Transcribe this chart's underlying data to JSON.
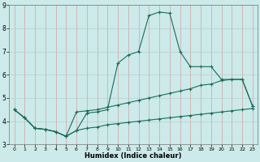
{
  "xlabel": "Humidex (Indice chaleur)",
  "background_color": "#cceaea",
  "line_color": "#1a6b5a",
  "xlim": [
    -0.5,
    23.5
  ],
  "ylim": [
    3,
    9
  ],
  "yticks": [
    3,
    4,
    5,
    6,
    7,
    8,
    9
  ],
  "xticks": [
    0,
    1,
    2,
    3,
    4,
    5,
    6,
    7,
    8,
    9,
    10,
    11,
    12,
    13,
    14,
    15,
    16,
    17,
    18,
    19,
    20,
    21,
    22,
    23
  ],
  "line1_x": [
    0,
    1,
    2,
    3,
    4,
    5,
    6,
    7,
    8,
    9,
    10,
    11,
    12,
    13,
    14,
    15,
    16,
    17,
    18,
    19,
    20,
    21,
    22,
    23
  ],
  "line1_y": [
    4.5,
    4.15,
    3.7,
    3.65,
    3.55,
    3.35,
    3.6,
    3.7,
    3.75,
    3.85,
    3.9,
    3.95,
    4.0,
    4.05,
    4.1,
    4.15,
    4.2,
    4.25,
    4.3,
    4.35,
    4.4,
    4.45,
    4.5,
    4.55
  ],
  "line2_x": [
    0,
    1,
    2,
    3,
    4,
    5,
    6,
    7,
    8,
    9,
    10,
    11,
    12,
    13,
    14,
    15,
    16,
    17,
    18,
    19,
    20,
    21,
    22,
    23
  ],
  "line2_y": [
    4.5,
    4.15,
    3.7,
    3.65,
    3.55,
    3.35,
    3.6,
    4.35,
    4.4,
    4.5,
    6.5,
    6.85,
    7.0,
    8.55,
    8.7,
    8.65,
    7.0,
    6.35,
    6.35,
    6.35,
    5.8,
    5.8,
    5.8,
    4.65
  ],
  "line3_x": [
    0,
    1,
    2,
    3,
    4,
    5,
    6,
    7,
    8,
    9,
    10,
    11,
    12,
    13,
    14,
    15,
    16,
    17,
    18,
    19,
    20,
    21,
    22,
    23
  ],
  "line3_y": [
    4.5,
    4.15,
    3.7,
    3.65,
    3.55,
    3.35,
    4.4,
    4.45,
    4.5,
    4.6,
    4.7,
    4.8,
    4.9,
    5.0,
    5.1,
    5.2,
    5.3,
    5.4,
    5.55,
    5.6,
    5.75,
    5.8,
    5.8,
    4.65
  ]
}
